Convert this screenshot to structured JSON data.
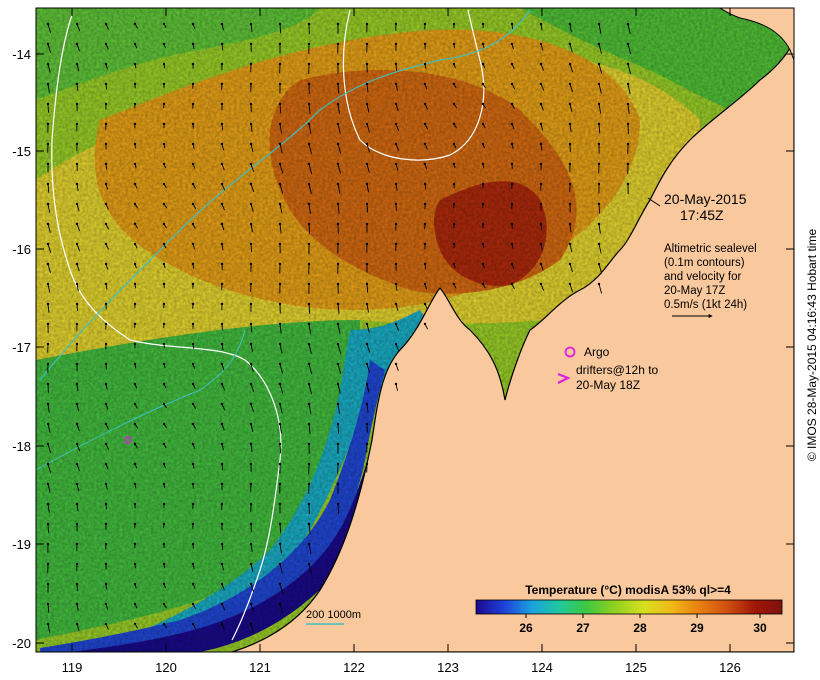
{
  "map": {
    "lon_ticks": [
      "119",
      "120",
      "121",
      "122",
      "123",
      "124",
      "125",
      "126"
    ],
    "lat_ticks": [
      "-14",
      "-15",
      "-16",
      "-17",
      "-18",
      "-19",
      "-20"
    ]
  },
  "annotations": {
    "time_line1": "20-May-2015",
    "time_line2": "17:45Z",
    "alt_line1": "Altimetric sealevel",
    "alt_line2": "(0.1m contours)",
    "alt_line3": "and velocity for",
    "alt_line4": "20-May 17Z",
    "alt_line5": "0.5m/s (1kt 24h)",
    "argo_label": "Argo",
    "drifter_line1": "drifters@12h to",
    "drifter_line2": "20-May 18Z",
    "bathy_label": "200  1000m"
  },
  "colorbar": {
    "title": "Temperature (°C) modisA 53% ql>=4",
    "ticks": [
      "26",
      "27",
      "28",
      "29",
      "30"
    ],
    "colors": [
      "#1a0a8c",
      "#1f3fd8",
      "#1aa0e0",
      "#20c8a0",
      "#3cc840",
      "#8ed020",
      "#d8e020",
      "#f0b818",
      "#e88010",
      "#d05010",
      "#a01808",
      "#801010"
    ]
  },
  "colors": {
    "land": "#f9c89d",
    "coast_line": "#000000",
    "contour": "#ffffff",
    "isobath": "#40c0c0",
    "argo": "#e020e0",
    "drifter": "#e020e0"
  },
  "credit": "© IMOS 28-May-2015 04:16:43 Hobart time"
}
